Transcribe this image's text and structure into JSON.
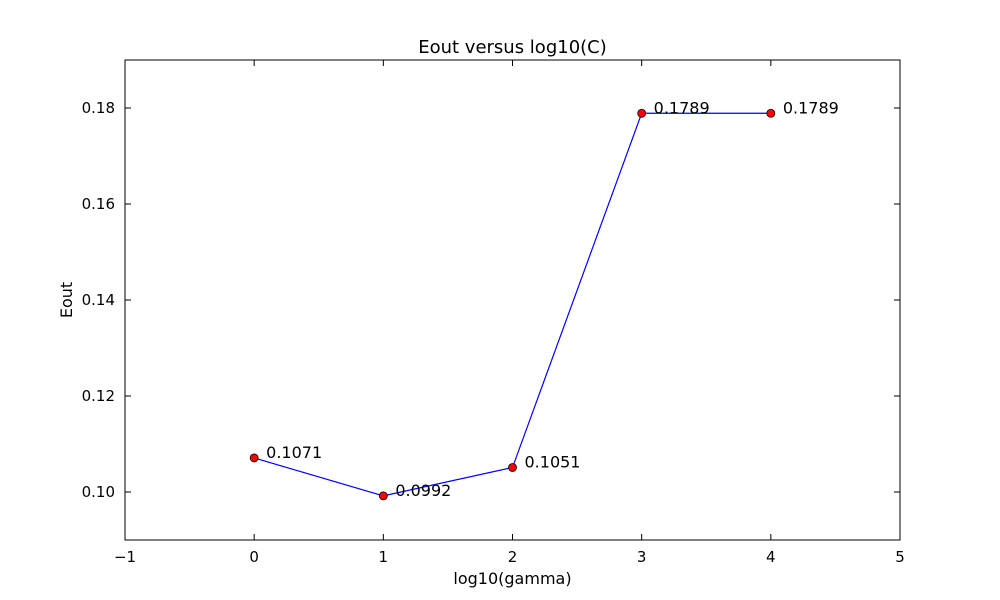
{
  "chart_data": {
    "type": "line",
    "title": "Eout versus log10(C)",
    "xlabel": "log10(gamma)",
    "ylabel": "Eout",
    "xlim": [
      -1,
      5
    ],
    "ylim": [
      0.09,
      0.19
    ],
    "x_ticks": [
      -1,
      0,
      1,
      2,
      3,
      4,
      5
    ],
    "x_tick_labels": [
      "−1",
      "0",
      "1",
      "2",
      "3",
      "4",
      "5"
    ],
    "y_ticks": [
      0.1,
      0.12,
      0.14,
      0.16,
      0.18
    ],
    "y_tick_labels": [
      "0.10",
      "0.12",
      "0.14",
      "0.16",
      "0.18"
    ],
    "grid": false,
    "series": [
      {
        "x": [
          0,
          1,
          2,
          3,
          4
        ],
        "y": [
          0.1071,
          0.0992,
          0.1051,
          0.1789,
          0.1789
        ],
        "line_color": "#0000ff",
        "marker_color": "#ff0000",
        "marker_edge_color": "#000000"
      }
    ],
    "annotations": [
      "0.1071",
      "0.0992",
      "0.1051",
      "0.1789",
      "0.1789"
    ]
  }
}
